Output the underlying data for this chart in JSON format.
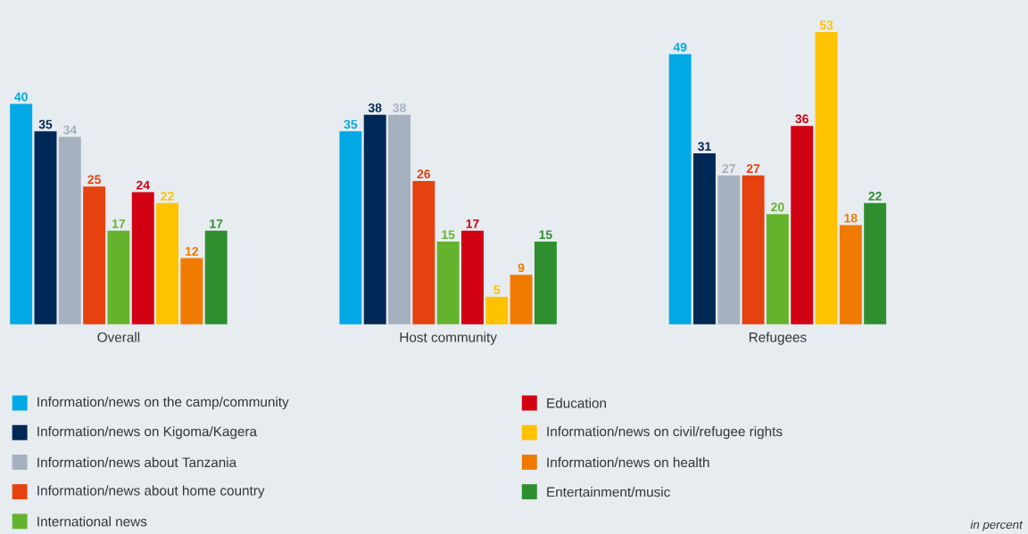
{
  "chart_data": {
    "type": "bar",
    "categories": [
      "Overall",
      "Host community",
      "Refugees"
    ],
    "series": [
      {
        "name": "Information/news on the camp/community",
        "color": "#00a9e6",
        "values": [
          40,
          35,
          49
        ]
      },
      {
        "name": "Information/news on Kigoma/Kagera",
        "color": "#002856",
        "values": [
          35,
          38,
          31
        ]
      },
      {
        "name": "Information/news about Tanzania",
        "color": "#a5b1be",
        "values": [
          34,
          38,
          27
        ]
      },
      {
        "name": "Information/news about home country",
        "color": "#e5420f",
        "values": [
          25,
          26,
          27
        ]
      },
      {
        "name": "International news",
        "color": "#64b32d",
        "values": [
          17,
          15,
          20
        ]
      },
      {
        "name": "Education",
        "color": "#d20013",
        "values": [
          24,
          17,
          36
        ]
      },
      {
        "name": "Information/news on civil/refugee rights",
        "color": "#ffc200",
        "values": [
          22,
          5,
          53
        ]
      },
      {
        "name": "Information/news on health",
        "color": "#f07a00",
        "values": [
          12,
          9,
          18
        ]
      },
      {
        "name": "Entertainment/music",
        "color": "#2f8f2f",
        "values": [
          17,
          15,
          22
        ]
      }
    ],
    "data_labels": true,
    "legend": "bottom",
    "tick_labels": "x",
    "annotations": [
      "in percent"
    ]
  }
}
